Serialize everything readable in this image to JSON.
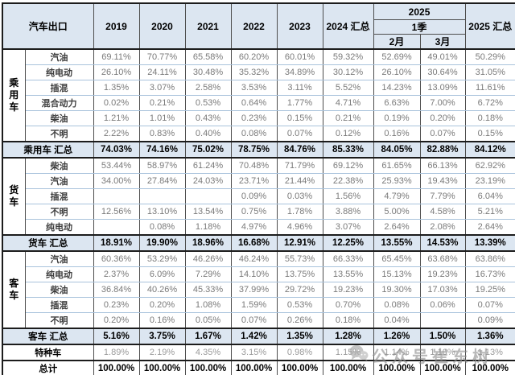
{
  "colors": {
    "header_bg": "#dce6f1",
    "summary_bg": "#dce6f1",
    "grid_light": "#a9c3dc",
    "grid_dark": "#4d4d4d",
    "frame": "#1c1c1c",
    "value_text": "#7a7a7a",
    "special_value_text": "#9a9a9a"
  },
  "table": {
    "corner_label": "汽车出口",
    "year_headers": [
      "2019",
      "2020",
      "2021",
      "2022",
      "2023",
      "2024 汇总"
    ],
    "q2025": {
      "year": "2025",
      "quarter": "1季",
      "months": [
        "2月",
        "3月"
      ]
    },
    "total_col_label": "2025 汇总"
  },
  "chart_data": {
    "type": "table",
    "title": "汽车出口",
    "columns": [
      "2019",
      "2020",
      "2021",
      "2022",
      "2023",
      "2024 汇总",
      "2025 2月",
      "2025 3月",
      "2025 汇总"
    ],
    "groups": [
      {
        "label": "乘用车",
        "rows": [
          {
            "label": "汽油",
            "values": [
              "69.11%",
              "70.77%",
              "65.58%",
              "60.20%",
              "60.01%",
              "59.32%",
              "52.69%",
              "49.01%",
              "50.29%"
            ]
          },
          {
            "label": "纯电动",
            "values": [
              "26.10%",
              "24.11%",
              "30.48%",
              "35.32%",
              "34.89%",
              "30.12%",
              "26.10%",
              "30.64%",
              "31.05%"
            ]
          },
          {
            "label": "插混",
            "values": [
              "1.35%",
              "3.07%",
              "2.58%",
              "3.53%",
              "3.11%",
              "5.52%",
              "14.23%",
              "13.09%",
              "11.61%"
            ]
          },
          {
            "label": "混合动力",
            "values": [
              "0.02%",
              "0.21%",
              "0.53%",
              "0.64%",
              "1.77%",
              "4.71%",
              "6.63%",
              "7.00%",
              "6.72%"
            ]
          },
          {
            "label": "柴油",
            "values": [
              "1.21%",
              "1.01%",
              "0.43%",
              "0.23%",
              "0.15%",
              "0.21%",
              "0.19%",
              "0.20%",
              "0.18%"
            ]
          },
          {
            "label": "不明",
            "values": [
              "2.22%",
              "0.83%",
              "0.40%",
              "0.08%",
              "0.07%",
              "0.12%",
              "0.16%",
              "0.07%",
              "0.15%"
            ]
          }
        ],
        "summary": {
          "label": "乘用车 汇总",
          "values": [
            "74.03%",
            "74.16%",
            "75.02%",
            "78.75%",
            "84.76%",
            "85.33%",
            "84.05%",
            "82.88%",
            "84.12%"
          ]
        }
      },
      {
        "label": "货车",
        "rows": [
          {
            "label": "柴油",
            "values": [
              "53.44%",
              "58.97%",
              "61.24%",
              "70.48%",
              "71.79%",
              "69.12%",
              "61.65%",
              "66.13%",
              "62.92%"
            ]
          },
          {
            "label": "汽油",
            "values": [
              "34.00%",
              "27.84%",
              "24.03%",
              "23.71%",
              "21.44%",
              "22.38%",
              "25.93%",
              "19.43%",
              "23.19%"
            ]
          },
          {
            "label": "插混",
            "values": [
              "",
              "",
              "",
              "0.09%",
              "0.03%",
              "1.56%",
              "4.79%",
              "7.79%",
              "6.04%"
            ]
          },
          {
            "label": "不明",
            "values": [
              "12.56%",
              "13.10%",
              "13.54%",
              "0.75%",
              "1.78%",
              "3.88%",
              "5.00%",
              "4.58%",
              "5.21%"
            ]
          },
          {
            "label": "纯电动",
            "values": [
              "",
              "0.08%",
              "1.18%",
              "4.97%",
              "4.96%",
              "3.07%",
              "2.64%",
              "2.08%",
              "2.64%"
            ]
          }
        ],
        "summary": {
          "label": "货车 汇总",
          "values": [
            "18.91%",
            "19.90%",
            "18.96%",
            "16.68%",
            "12.91%",
            "12.25%",
            "13.55%",
            "14.53%",
            "13.39%"
          ]
        }
      },
      {
        "label": "客车",
        "rows": [
          {
            "label": "汽油",
            "values": [
              "60.36%",
              "53.29%",
              "46.26%",
              "46.24%",
              "55.73%",
              "66.33%",
              "65.45%",
              "63.68%",
              "63.86%"
            ]
          },
          {
            "label": "纯电动",
            "values": [
              "2.37%",
              "6.09%",
              "7.29%",
              "14.10%",
              "13.75%",
              "13.55%",
              "15.13%",
              "19.23%",
              "16.73%"
            ]
          },
          {
            "label": "柴油",
            "values": [
              "36.84%",
              "40.26%",
              "45.33%",
              "37.99%",
              "29.72%",
              "19.23%",
              "19.30%",
              "17.03%",
              "19.25%"
            ]
          },
          {
            "label": "插混",
            "values": [
              "0.23%",
              "0.20%",
              "1.08%",
              "1.59%",
              "0.53%",
              "0.70%",
              "0.08%",
              "0.06%",
              "0.07%"
            ]
          },
          {
            "label": "不明",
            "values": [
              "0.20%",
              "0.16%",
              "0.05%",
              "0.07%",
              "0.26%",
              "0.18%",
              "0.04%",
              "",
              "0.09%"
            ]
          }
        ],
        "summary": {
          "label": "客车 汇总",
          "values": [
            "5.16%",
            "3.75%",
            "1.67%",
            "1.42%",
            "1.35%",
            "1.28%",
            "1.26%",
            "1.50%",
            "1.36%"
          ]
        }
      }
    ],
    "special_row": {
      "label": "特种车",
      "values": [
        "1.89%",
        "2.19%",
        "4.35%",
        "3.15%",
        "0.98%",
        "1.15%",
        "1.14%",
        "1.10%",
        "1.13%"
      ]
    },
    "total_row": {
      "label": "总计",
      "values": [
        "100.00%",
        "100.00%",
        "100.00%",
        "100.00%",
        "100.00%",
        "100.00%",
        "100.00%",
        "100.00%",
        "100.00%"
      ]
    }
  },
  "watermark": {
    "icon": "wechat-icon",
    "text": "公众号崔东树"
  }
}
